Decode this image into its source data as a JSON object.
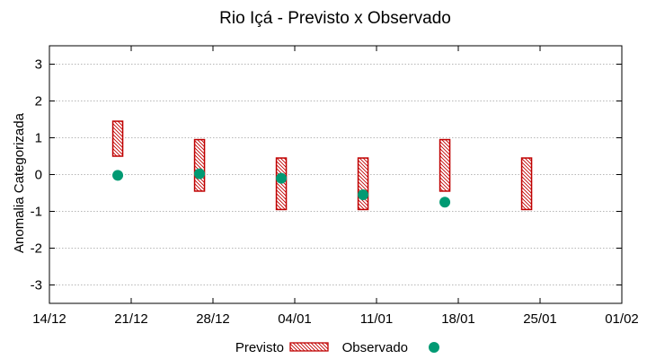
{
  "chart_data": {
    "type": "floating-bar-with-scatter",
    "title": "Rio Içá - Previsto x Observado",
    "xlabel": "",
    "ylabel": "Anomalia Categorizada",
    "xlim": [
      "14/12",
      "01/02"
    ],
    "ylim": [
      -3.5,
      3.5
    ],
    "x_tick_labels": [
      "14/12",
      "21/12",
      "28/12",
      "04/01",
      "11/01",
      "18/01",
      "25/01",
      "01/02"
    ],
    "y_ticks": [
      3,
      2,
      1,
      0,
      -1,
      -2,
      -3
    ],
    "y_tick_labels": [
      "3",
      "2",
      "1",
      "0",
      "-1",
      "-2",
      "-3"
    ],
    "grid": true,
    "legend": [
      {
        "label": "Previsto",
        "style": "hatched-bar"
      },
      {
        "label": "Observado",
        "style": "dot"
      }
    ],
    "series": [
      {
        "name": "Previsto",
        "kind": "range",
        "points": [
          {
            "x": 5.85,
            "low": 0.5,
            "high": 1.45
          },
          {
            "x": 12.85,
            "low": -0.45,
            "high": 0.95
          },
          {
            "x": 19.85,
            "low": -0.95,
            "high": 0.45
          },
          {
            "x": 26.85,
            "low": -0.95,
            "high": 0.45
          },
          {
            "x": 33.85,
            "low": -0.45,
            "high": 0.95
          },
          {
            "x": 40.85,
            "low": -0.95,
            "high": 0.45
          }
        ]
      },
      {
        "name": "Observado",
        "kind": "scatter",
        "points": [
          {
            "x": 5.85,
            "y": -0.02
          },
          {
            "x": 12.85,
            "y": 0.02
          },
          {
            "x": 19.85,
            "y": -0.1
          },
          {
            "x": 26.85,
            "y": -0.55
          },
          {
            "x": 33.85,
            "y": -0.75
          }
        ]
      }
    ],
    "colors": {
      "bar_stroke": "#c00000",
      "hatch": "#c00000",
      "dot": "#009a73",
      "grid": "#a0a0a0"
    }
  }
}
